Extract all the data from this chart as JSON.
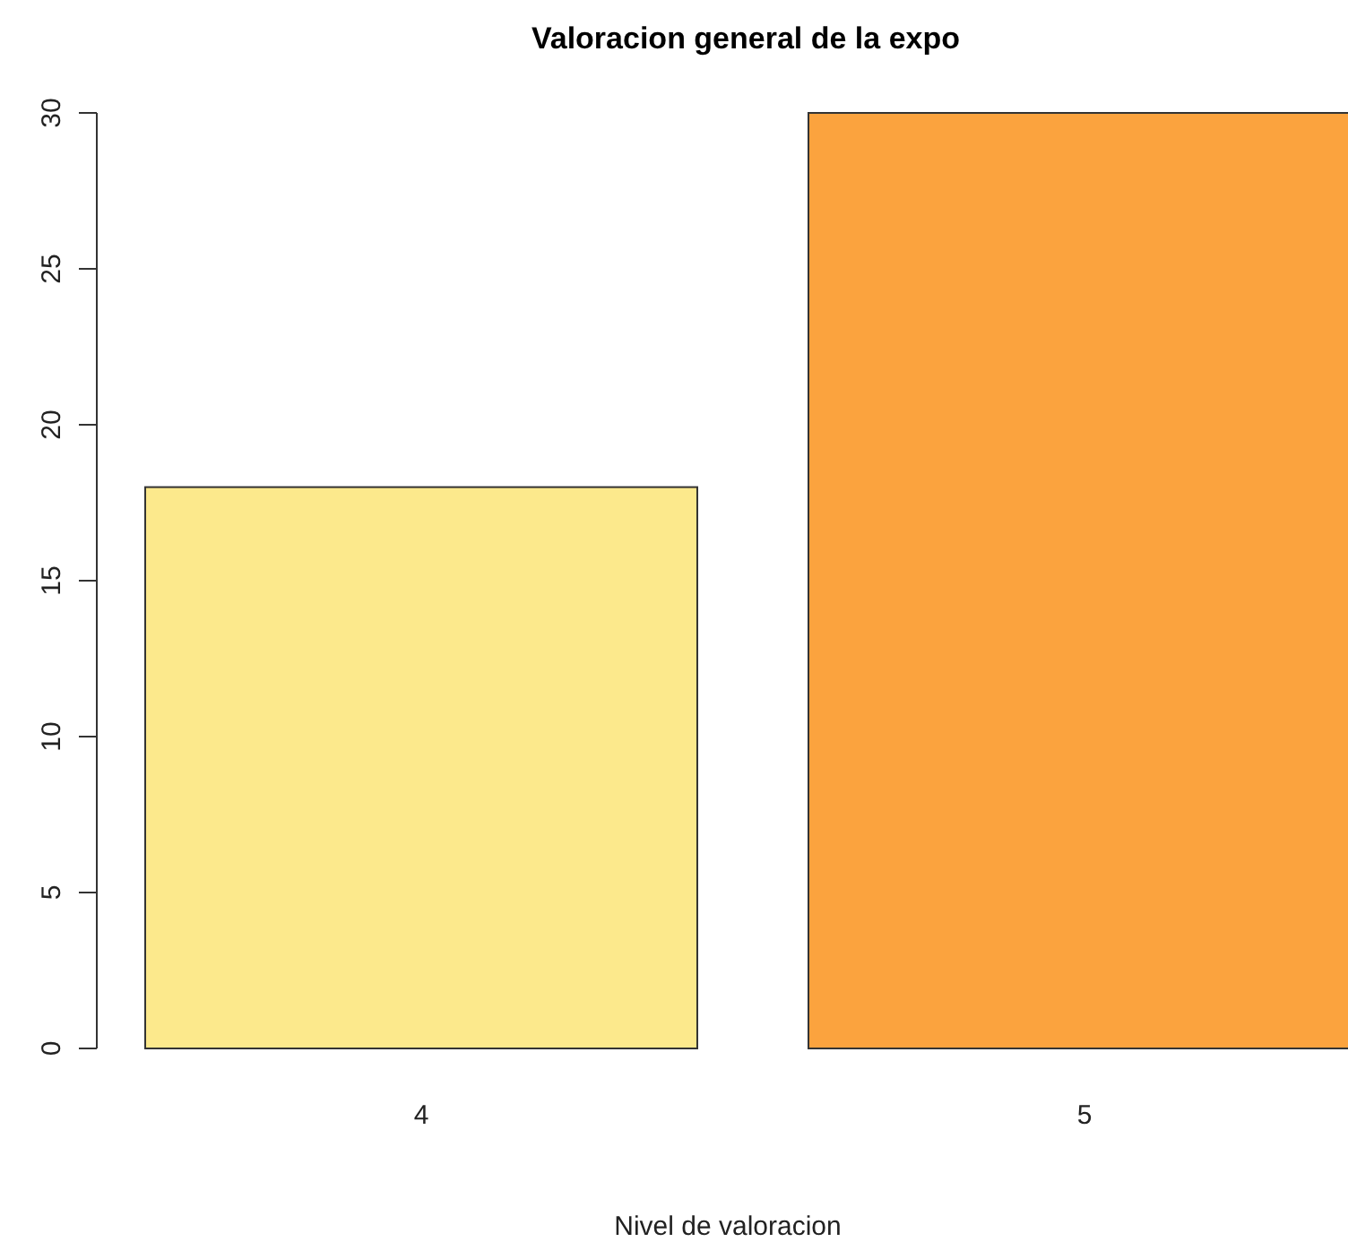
{
  "chart_data": {
    "type": "bar",
    "title": "Valoracion general de la expo",
    "xlabel": "Nivel de valoracion",
    "categories": [
      "4",
      "5"
    ],
    "values": [
      18,
      30
    ],
    "colors": [
      "#fce98c",
      "#fba33e"
    ],
    "ylim": [
      0,
      30
    ],
    "yticks": [
      0,
      5,
      10,
      15,
      20,
      25,
      30
    ],
    "grid": false
  }
}
